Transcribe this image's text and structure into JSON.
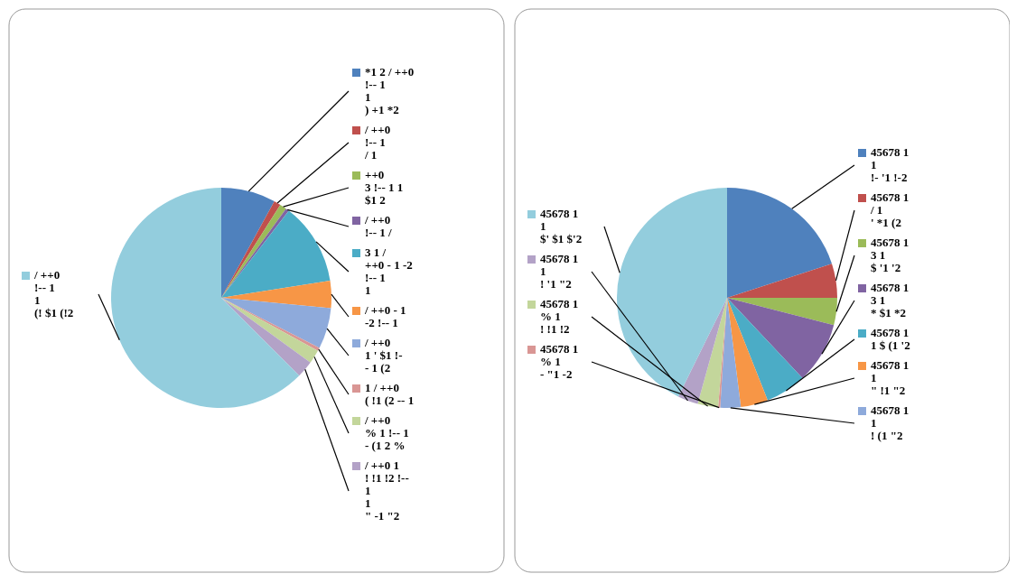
{
  "chart_data": [
    {
      "type": "pie",
      "categories": [
        "*1 2 / ++0\n!-- 1\n1\n) +1 *2",
        "/ ++0\n!-- 1\n/ 1",
        "++0\n3 !-- 1 1\n$1 2",
        "/ ++0\n!-- 1 /",
        "3 1 /\n++0 - 1 -2\n!-- 1\n1",
        "/ ++0 - 1\n-2 !-- 1",
        "/ ++0\n1 ' $1 !-\n- 1 (2",
        "1 / ++0\n( !1 (2 -- 1",
        "/ ++0\n% 1 !-- 1\n- (1 2 %",
        "/ ++0 1\n! !1 !2 !--\n1\n1\n\" -1 \"2",
        "/ ++0\n!-- 1\n1\n(! $1 (!2"
      ],
      "values": [
        8,
        1,
        1,
        0.5,
        12,
        4,
        6,
        0.5,
        2,
        2.5,
        62.5
      ],
      "legend": "right",
      "colors": [
        "#4f81bd",
        "#c0504d",
        "#9bbb59",
        "#8064a2",
        "#4bacc6",
        "#f79646",
        "#8eaadb",
        "#d99694",
        "#c3d69b",
        "#b3a2c7",
        "#93cddd"
      ]
    },
    {
      "type": "pie",
      "categories": [
        "45678 1\n1\n!- '1 !-2",
        "45678 1\n/ 1\n' *1 (2",
        "45678 1\n3 1\n$ '1 '2",
        "45678 1\n3 1\n* $1 *2",
        "45678 1\n1 $ (1 '2",
        "45678 1\n1\n\" !1 \"2",
        "45678 1\n1\n! (1 \"2",
        "45678 1\n% 1\n- \"1 -2",
        "45678 1\n% 1\n! !1 !2",
        "45678 1\n1\n! '1 \"2",
        "45678 1\n1\n$' $1 $'2"
      ],
      "values": [
        20,
        5,
        4,
        9,
        6,
        4,
        3,
        0.3,
        3,
        3,
        42.7
      ],
      "legend": "right",
      "colors": [
        "#4f81bd",
        "#c0504d",
        "#9bbb59",
        "#8064a2",
        "#4bacc6",
        "#f79646",
        "#8eaadb",
        "#d99694",
        "#c3d69b",
        "#b3a2c7",
        "#93cddd"
      ]
    }
  ]
}
